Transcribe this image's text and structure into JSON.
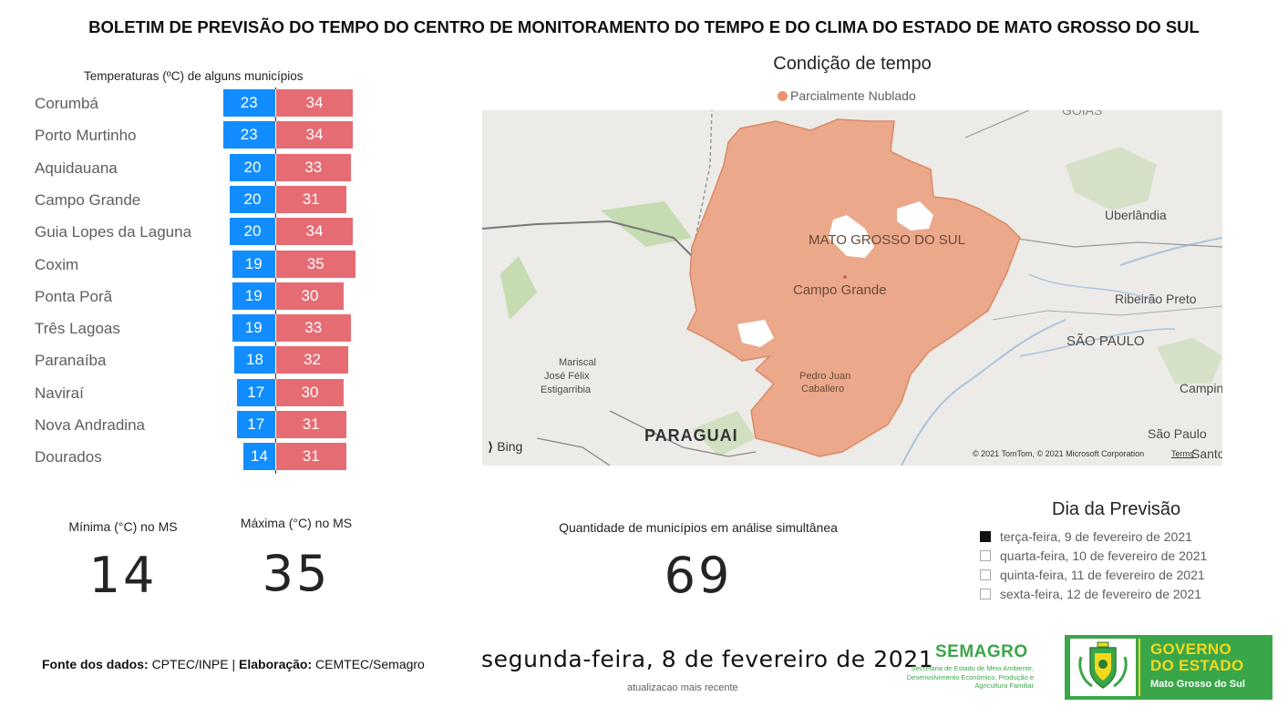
{
  "header": {
    "title": "BOLETIM DE PREVISÃO DO TEMPO DO CENTRO DE MONITORAMENTO DO TEMPO E DO CLIMA DO ESTADO DE MATO GROSSO DO SUL"
  },
  "temperatures": {
    "title": "Temperaturas (ºC) de alguns municípios",
    "min_color": "#118dff",
    "max_color": "#e66c74",
    "rows": [
      {
        "city": "Corumbá",
        "min": "23",
        "max": "34"
      },
      {
        "city": "Porto Murtinho",
        "min": "23",
        "max": "34"
      },
      {
        "city": "Aquidauana",
        "min": "20",
        "max": "33"
      },
      {
        "city": "Campo Grande",
        "min": "20",
        "max": "31"
      },
      {
        "city": "Guia Lopes da Laguna",
        "min": "20",
        "max": "34"
      },
      {
        "city": "Coxim",
        "min": "19",
        "max": "35"
      },
      {
        "city": "Ponta Porã",
        "min": "19",
        "max": "30"
      },
      {
        "city": "Três Lagoas",
        "min": "19",
        "max": "33"
      },
      {
        "city": "Paranaíba",
        "min": "18",
        "max": "32"
      },
      {
        "city": "Naviraí",
        "min": "17",
        "max": "30"
      },
      {
        "city": "Nova Andradina",
        "min": "17",
        "max": "31"
      },
      {
        "city": "Dourados",
        "min": "14",
        "max": "31"
      }
    ]
  },
  "map": {
    "title": "Condição de tempo",
    "legend_label": "Parcialmente Nublado",
    "legend_color": "#e8956d",
    "labels": {
      "state": "MATO GROSSO DO SUL",
      "capital": "Campo Grande",
      "mariscal_1": "Mariscal",
      "mariscal_2": "José Félix",
      "mariscal_3": "Estigarribia",
      "pedro_1": "Pedro Juan",
      "pedro_2": "Caballero",
      "paraguai": "PARAGUAI",
      "uberlandia": "Uberlândia",
      "ribeirao": "Ribeirão Preto",
      "saopaulo_state": "SÃO PAULO",
      "campinas": "Campina",
      "saopaulo_city": "São Paulo",
      "santo": "Santo",
      "goias": "GOIÁS",
      "bing": "Bing",
      "copyright": "© 2021 TomTom, © 2021 Microsoft Corporation",
      "terms": "Terms"
    }
  },
  "kpis": {
    "min_label": "Mínima (°C) no MS",
    "min_value": "14",
    "max_label": "Máxima (°C) no MS",
    "max_value": "35",
    "count_label": "Quantidade de municípios em análise simultânea",
    "count_value": "69"
  },
  "forecast_day": {
    "title": "Dia da Previsão",
    "options": [
      {
        "label": "terça-feira, 9 de fevereiro de 2021",
        "selected": true
      },
      {
        "label": "quarta-feira, 10 de fevereiro de 2021",
        "selected": false
      },
      {
        "label": "quinta-feira, 11 de fevereiro de 2021",
        "selected": false
      },
      {
        "label": "sexta-feira, 12 de fevereiro de 2021",
        "selected": false
      }
    ]
  },
  "footer": {
    "fonte_label": "Fonte dos dados:",
    "fonte_value": "CPTEC/INPE |",
    "elab_label": "Elaboração:",
    "elab_value": "CEMTEC/Semagro",
    "date": "segunda-feira, 8 de fevereiro de 2021",
    "date_sub": "atualizacao mais recente",
    "semagro_title": "SEMAGRO",
    "semagro_sub": "Secretaria de Estado de Meio Ambiente, Desenvolvimento Econômico, Produção e Agricultura Familiar",
    "gov_line1": "GOVERNO",
    "gov_line2": "DO ESTADO",
    "gov_line3": "Mato Grosso do Sul"
  }
}
